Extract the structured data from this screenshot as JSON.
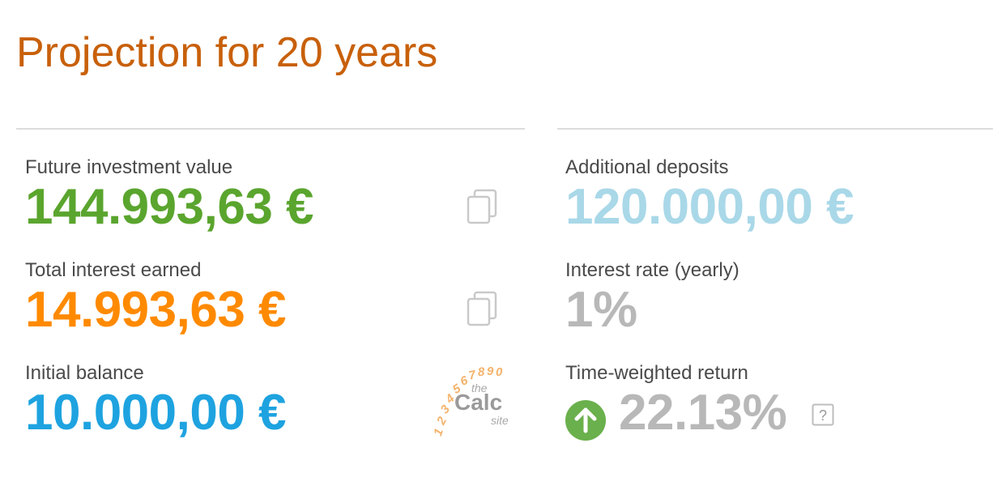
{
  "header": {
    "title": "Projection for 20 years"
  },
  "left": {
    "future_value": {
      "label": "Future investment value",
      "value": "144.993,63 €",
      "color": "#5aa52e"
    },
    "total_interest": {
      "label": "Total interest earned",
      "value": "14.993,63 €",
      "color": "#ff8a00"
    },
    "initial_balance": {
      "label": "Initial balance",
      "value": "10.000,00 €",
      "color": "#1ea3e0"
    }
  },
  "right": {
    "additional_deposits": {
      "label": "Additional deposits",
      "value": "120.000,00 €",
      "color": "#a9d8e8"
    },
    "interest_rate": {
      "label": "Interest rate (yearly)",
      "value": "1%",
      "color": "#b8b8b8"
    },
    "time_weighted": {
      "label": "Time-weighted return",
      "value": "22.13%",
      "color": "#b8b8b8",
      "trend": "up",
      "trend_color": "#6ab04c"
    }
  },
  "icons": {
    "copy": "copy-icon",
    "help": "question-mark-icon",
    "trend": "arrow-up-icon"
  },
  "logo": {
    "digits": "1234567890",
    "the": "the",
    "brand": "Calc",
    "site": "site"
  }
}
